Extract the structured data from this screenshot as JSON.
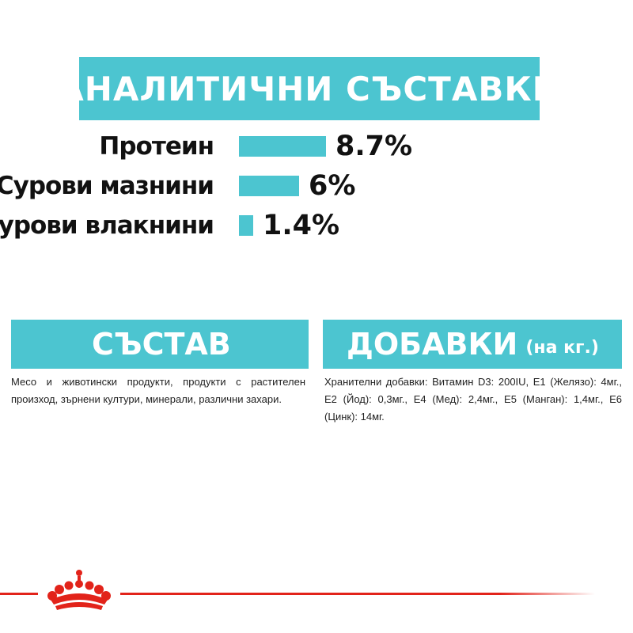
{
  "analytical": {
    "title": "АНАЛИТИЧНИ СЪСТАВКИ",
    "items": [
      {
        "label": "Протеин",
        "value_text": "8.7%",
        "value": 8.7
      },
      {
        "label": "Сурови мазнини",
        "value_text": "6%",
        "value": 6
      },
      {
        "label": "Сурови влакнини",
        "value_text": "1.4%",
        "value": 1.4
      }
    ]
  },
  "composition": {
    "title": "СЪСТАВ",
    "text": "Месо и животински продукти, продукти с растителен произход, зърнени култури, минерали, различни захари."
  },
  "additives": {
    "title": "ДОБАВКИ",
    "unit": "(на кг.)",
    "text": "Хранителни добавки: Витамин D3: 200IU, E1 (Желязо): 4мг., E2 (Йод): 0,3мг., E4 (Мед): 2,4мг., E5 (Манган): 1,4мг., E6 (Цинк): 14мг."
  },
  "colors": {
    "accent": "#4cc5d0",
    "brand_red": "#e2231a"
  },
  "icons": {
    "brand_logo": "crown-icon"
  }
}
